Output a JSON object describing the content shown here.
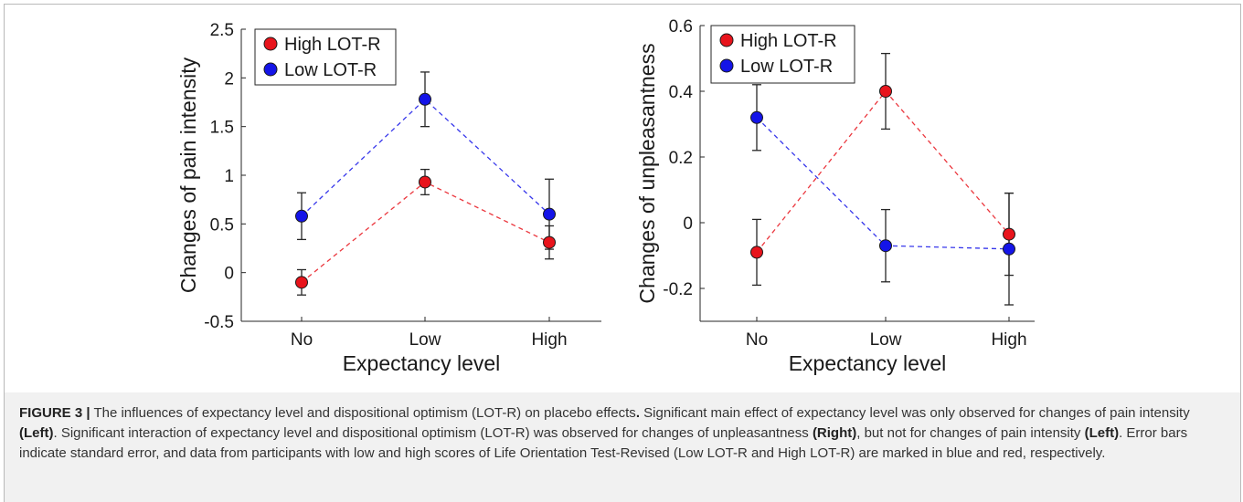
{
  "chart_data": [
    {
      "type": "line",
      "xlabel": "Expectancy level",
      "ylabel": "Changes of pain intensity",
      "categories": [
        "No",
        "Low",
        "High"
      ],
      "ylim": [
        -0.5,
        2.5
      ],
      "yticks": [
        "-0.5",
        "0",
        "0.5",
        "1",
        "1.5",
        "2",
        "2.5"
      ],
      "legend_position": "top-left",
      "series": [
        {
          "name": "High LOT-R",
          "color": "#e8141c",
          "values": [
            -0.1,
            0.93,
            0.31
          ],
          "err": [
            0.13,
            0.13,
            0.17
          ]
        },
        {
          "name": "Low LOT-R",
          "color": "#1414e8",
          "values": [
            0.58,
            1.78,
            0.6
          ],
          "err": [
            0.24,
            0.28,
            0.36
          ]
        }
      ]
    },
    {
      "type": "line",
      "xlabel": "Expectancy level",
      "ylabel": "Changes of unpleasantness",
      "categories": [
        "No",
        "Low",
        "High"
      ],
      "ylim": [
        -0.3,
        0.6
      ],
      "yticks": [
        "-0.2",
        "0",
        "0.2",
        "0.4",
        "0.6"
      ],
      "legend_position": "top-left",
      "series": [
        {
          "name": "High LOT-R",
          "color": "#e8141c",
          "values": [
            -0.09,
            0.4,
            -0.035
          ],
          "err": [
            0.1,
            0.115,
            0.125
          ]
        },
        {
          "name": "Low LOT-R",
          "color": "#1414e8",
          "values": [
            0.32,
            -0.07,
            -0.08
          ],
          "err": [
            0.1,
            0.11,
            0.17
          ]
        }
      ]
    }
  ],
  "caption": {
    "label": "FIGURE 3 |",
    "t1": " The influences of expectancy level and dispositional optimism (LOT-R) on placebo effects",
    "t1_bold": ".",
    "t2": " Significant main effect of expectancy level was only observed for changes of pain intensity ",
    "left1": "(Left)",
    "t3": ". Significant interaction of expectancy level and dispositional optimism (LOT-R) was observed for changes of unpleasantness ",
    "right1": "(Right)",
    "t4": ", but not for changes of pain intensity ",
    "left2": "(Left)",
    "t5": ". Error bars indicate standard error, and data from participants with low and high scores of Life Orientation Test-Revised (Low LOT-R and High LOT-R) are marked in blue and red, respectively."
  }
}
